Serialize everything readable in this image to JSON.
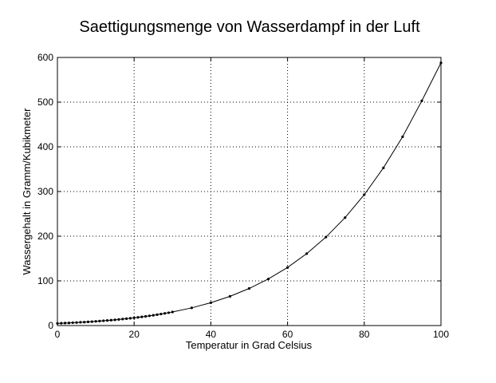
{
  "chart_data": {
    "type": "line",
    "title": "Saettigungsmenge von Wasserdampf in der Luft",
    "xlabel": "Temperatur in Grad Celsius",
    "ylabel": "Wassergehalt in Gramm/Kubikmeter",
    "xlim": [
      0,
      100
    ],
    "ylim": [
      0,
      600
    ],
    "xticks": [
      0,
      20,
      40,
      60,
      80,
      100
    ],
    "yticks": [
      0,
      100,
      200,
      300,
      400,
      500,
      600
    ],
    "xtick_labels": [
      "0",
      "20",
      "40",
      "60",
      "80",
      "100"
    ],
    "ytick_labels": [
      "0",
      "100",
      "200",
      "300",
      "400",
      "500",
      "600"
    ],
    "grid": true,
    "legend": "none",
    "line_color": "#000000",
    "marker": "dot",
    "series": [
      {
        "x": [
          0,
          1,
          2,
          3,
          4,
          5,
          6,
          7,
          8,
          9,
          10,
          11,
          12,
          13,
          14,
          15,
          16,
          17,
          18,
          19,
          20,
          21,
          22,
          23,
          24,
          25,
          26,
          27,
          28,
          29,
          30,
          35,
          40,
          45,
          50,
          55,
          60,
          65,
          70,
          75,
          80,
          85,
          90,
          95,
          100
        ],
        "y": [
          4.8,
          5.2,
          5.6,
          5.9,
          6.4,
          6.8,
          7.3,
          7.7,
          8.3,
          8.8,
          9.4,
          10.0,
          10.7,
          11.4,
          12.1,
          12.8,
          13.6,
          14.5,
          15.4,
          16.3,
          17.3,
          18.3,
          19.4,
          20.6,
          21.8,
          23.0,
          24.4,
          25.8,
          27.2,
          28.7,
          30.4,
          39.6,
          51.1,
          65.4,
          83.0,
          104.3,
          130.0,
          161.0,
          197.9,
          241.6,
          292.9,
          353.0,
          422.6,
          502.9,
          588.0
        ]
      }
    ]
  }
}
